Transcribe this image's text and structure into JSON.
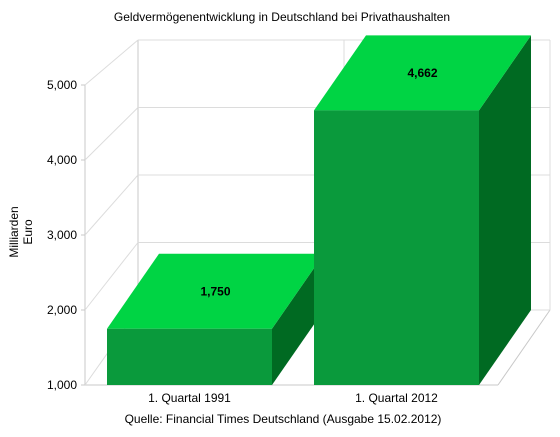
{
  "chart_data": {
    "type": "bar",
    "title": "Geldvermögenentwicklung in Deutschland bei Privathaushalten",
    "ylabel_lines": [
      "Milliarden",
      "Euro"
    ],
    "xlabel": "",
    "caption": "Quelle: Financial Times Deutschland (Ausgabe 15.02.2012)",
    "categories": [
      "1. Quartal 1991",
      "1. Quartal 2012"
    ],
    "values": [
      1750,
      4662
    ],
    "value_labels": [
      "1,750",
      "4,662"
    ],
    "ylim": [
      1000,
      5000
    ],
    "yticks": [
      1000,
      2000,
      3000,
      4000,
      5000
    ],
    "ytick_labels": [
      "1,000",
      "2,000",
      "3,000",
      "4,000",
      "5,000"
    ],
    "grid": true,
    "three_d": true,
    "colors": {
      "front": "#0a9a3c",
      "top": "#00d444",
      "side": "#006a22",
      "grid": "#dcdcdc",
      "axis": "#c8c8c8"
    }
  }
}
